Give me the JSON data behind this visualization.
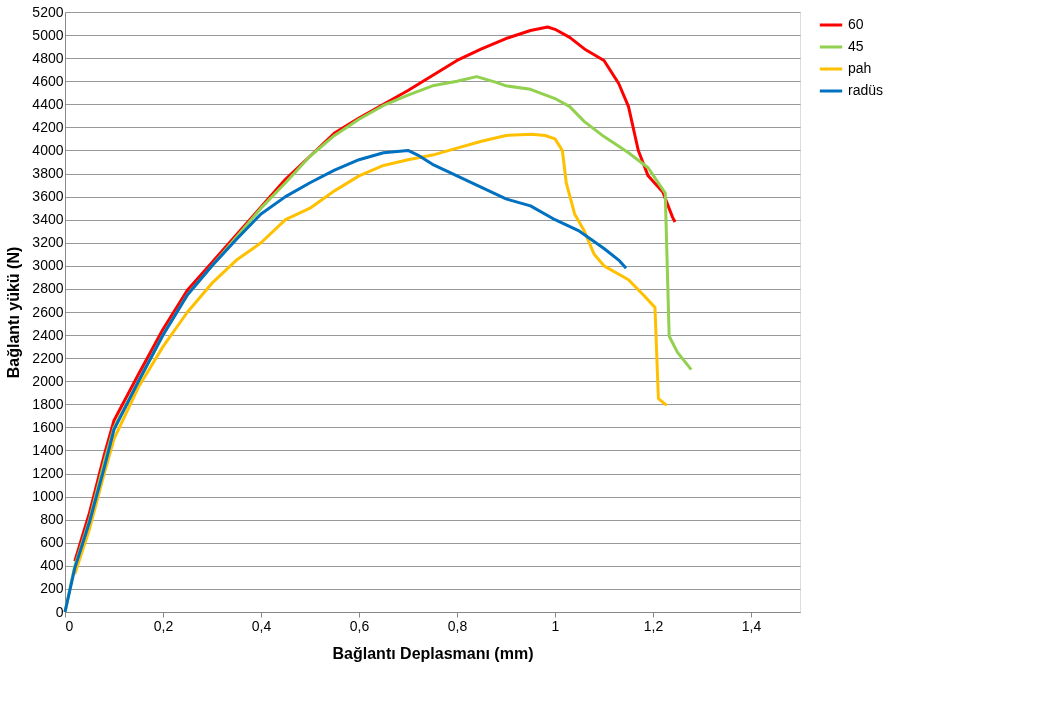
{
  "chart_data": {
    "type": "line",
    "xlabel": "Bağlantı Deplasmanı (mm)",
    "ylabel": "Bağlantı yükü (N)",
    "xlim": [
      0,
      1.5
    ],
    "xticks": [
      0,
      {
        "value": 0.2,
        "label": "0,2"
      },
      {
        "value": 0.4,
        "label": "0,4"
      },
      {
        "value": 0.6,
        "label": "0,6"
      },
      {
        "value": 0.8,
        "label": "0,8"
      },
      1,
      {
        "value": 1.2,
        "label": "1,2"
      },
      {
        "value": 1.4,
        "label": "1,4"
      }
    ],
    "ylim": [
      0,
      5200
    ],
    "yticks": [
      0,
      200,
      400,
      600,
      800,
      1000,
      1200,
      1400,
      1600,
      1800,
      2000,
      2200,
      2400,
      2600,
      2800,
      3000,
      3200,
      3400,
      3600,
      3800,
      4000,
      4200,
      4400,
      4600,
      4800,
      5000,
      5200
    ],
    "grid": "y",
    "legend": "right",
    "marker": "none",
    "line_style": "solid",
    "series": [
      {
        "name": "60",
        "color": "#ff0000",
        "x": [
          0.02,
          0.05,
          0.08,
          0.1,
          0.15,
          0.2,
          0.25,
          0.3,
          0.35,
          0.4,
          0.45,
          0.5,
          0.55,
          0.6,
          0.65,
          0.7,
          0.75,
          0.8,
          0.85,
          0.9,
          0.95,
          0.985,
          1.0,
          1.03,
          1.06,
          1.1,
          1.13,
          1.15,
          1.17,
          1.19,
          1.22,
          1.24,
          1.245
        ],
        "values": [
          440,
          860,
          1360,
          1660,
          2060,
          2450,
          2790,
          3030,
          3270,
          3510,
          3750,
          3950,
          4150,
          4280,
          4400,
          4520,
          4650,
          4780,
          4880,
          4970,
          5040,
          5070,
          5050,
          4980,
          4880,
          4780,
          4580,
          4380,
          4000,
          3780,
          3640,
          3420,
          3380
        ]
      },
      {
        "name": "45",
        "color": "#92d050",
        "x": [
          0,
          0.02,
          0.05,
          0.08,
          0.1,
          0.15,
          0.2,
          0.25,
          0.3,
          0.35,
          0.4,
          0.45,
          0.5,
          0.55,
          0.6,
          0.65,
          0.7,
          0.75,
          0.8,
          0.84,
          0.88,
          0.9,
          0.95,
          1.0,
          1.03,
          1.06,
          1.1,
          1.15,
          1.19,
          1.225,
          1.233,
          1.25,
          1.278
        ],
        "values": [
          0,
          400,
          800,
          1300,
          1600,
          2000,
          2400,
          2750,
          3000,
          3250,
          3500,
          3720,
          3950,
          4130,
          4270,
          4390,
          4480,
          4560,
          4600,
          4640,
          4590,
          4560,
          4530,
          4450,
          4380,
          4250,
          4120,
          3980,
          3850,
          3630,
          2390,
          2250,
          2100
        ]
      },
      {
        "name": "pah",
        "color": "#ffc000",
        "x": [
          0.02,
          0.05,
          0.08,
          0.1,
          0.15,
          0.2,
          0.25,
          0.3,
          0.35,
          0.4,
          0.45,
          0.5,
          0.55,
          0.6,
          0.65,
          0.7,
          0.75,
          0.8,
          0.85,
          0.9,
          0.953,
          0.98,
          1.0,
          1.015,
          1.023,
          1.04,
          1.06,
          1.08,
          1.1,
          1.15,
          1.18,
          1.204,
          1.211,
          1.228
        ],
        "values": [
          330,
          720,
          1200,
          1500,
          1950,
          2300,
          2600,
          2850,
          3050,
          3200,
          3400,
          3500,
          3650,
          3780,
          3870,
          3920,
          3960,
          4020,
          4080,
          4130,
          4140,
          4130,
          4100,
          4000,
          3720,
          3450,
          3300,
          3100,
          3000,
          2880,
          2750,
          2640,
          1850,
          1790
        ]
      },
      {
        "name": "radüs",
        "color": "#0070c0",
        "x": [
          0,
          0.02,
          0.05,
          0.08,
          0.1,
          0.15,
          0.2,
          0.25,
          0.3,
          0.35,
          0.4,
          0.45,
          0.5,
          0.55,
          0.6,
          0.65,
          0.7,
          0.72,
          0.75,
          0.8,
          0.85,
          0.9,
          0.95,
          1.0,
          1.05,
          1.1,
          1.13,
          1.145
        ],
        "values": [
          0,
          380,
          780,
          1250,
          1580,
          2000,
          2400,
          2750,
          3000,
          3230,
          3450,
          3600,
          3720,
          3830,
          3920,
          3980,
          4000,
          3960,
          3880,
          3780,
          3680,
          3580,
          3520,
          3400,
          3300,
          3150,
          3050,
          2980
        ]
      }
    ]
  }
}
